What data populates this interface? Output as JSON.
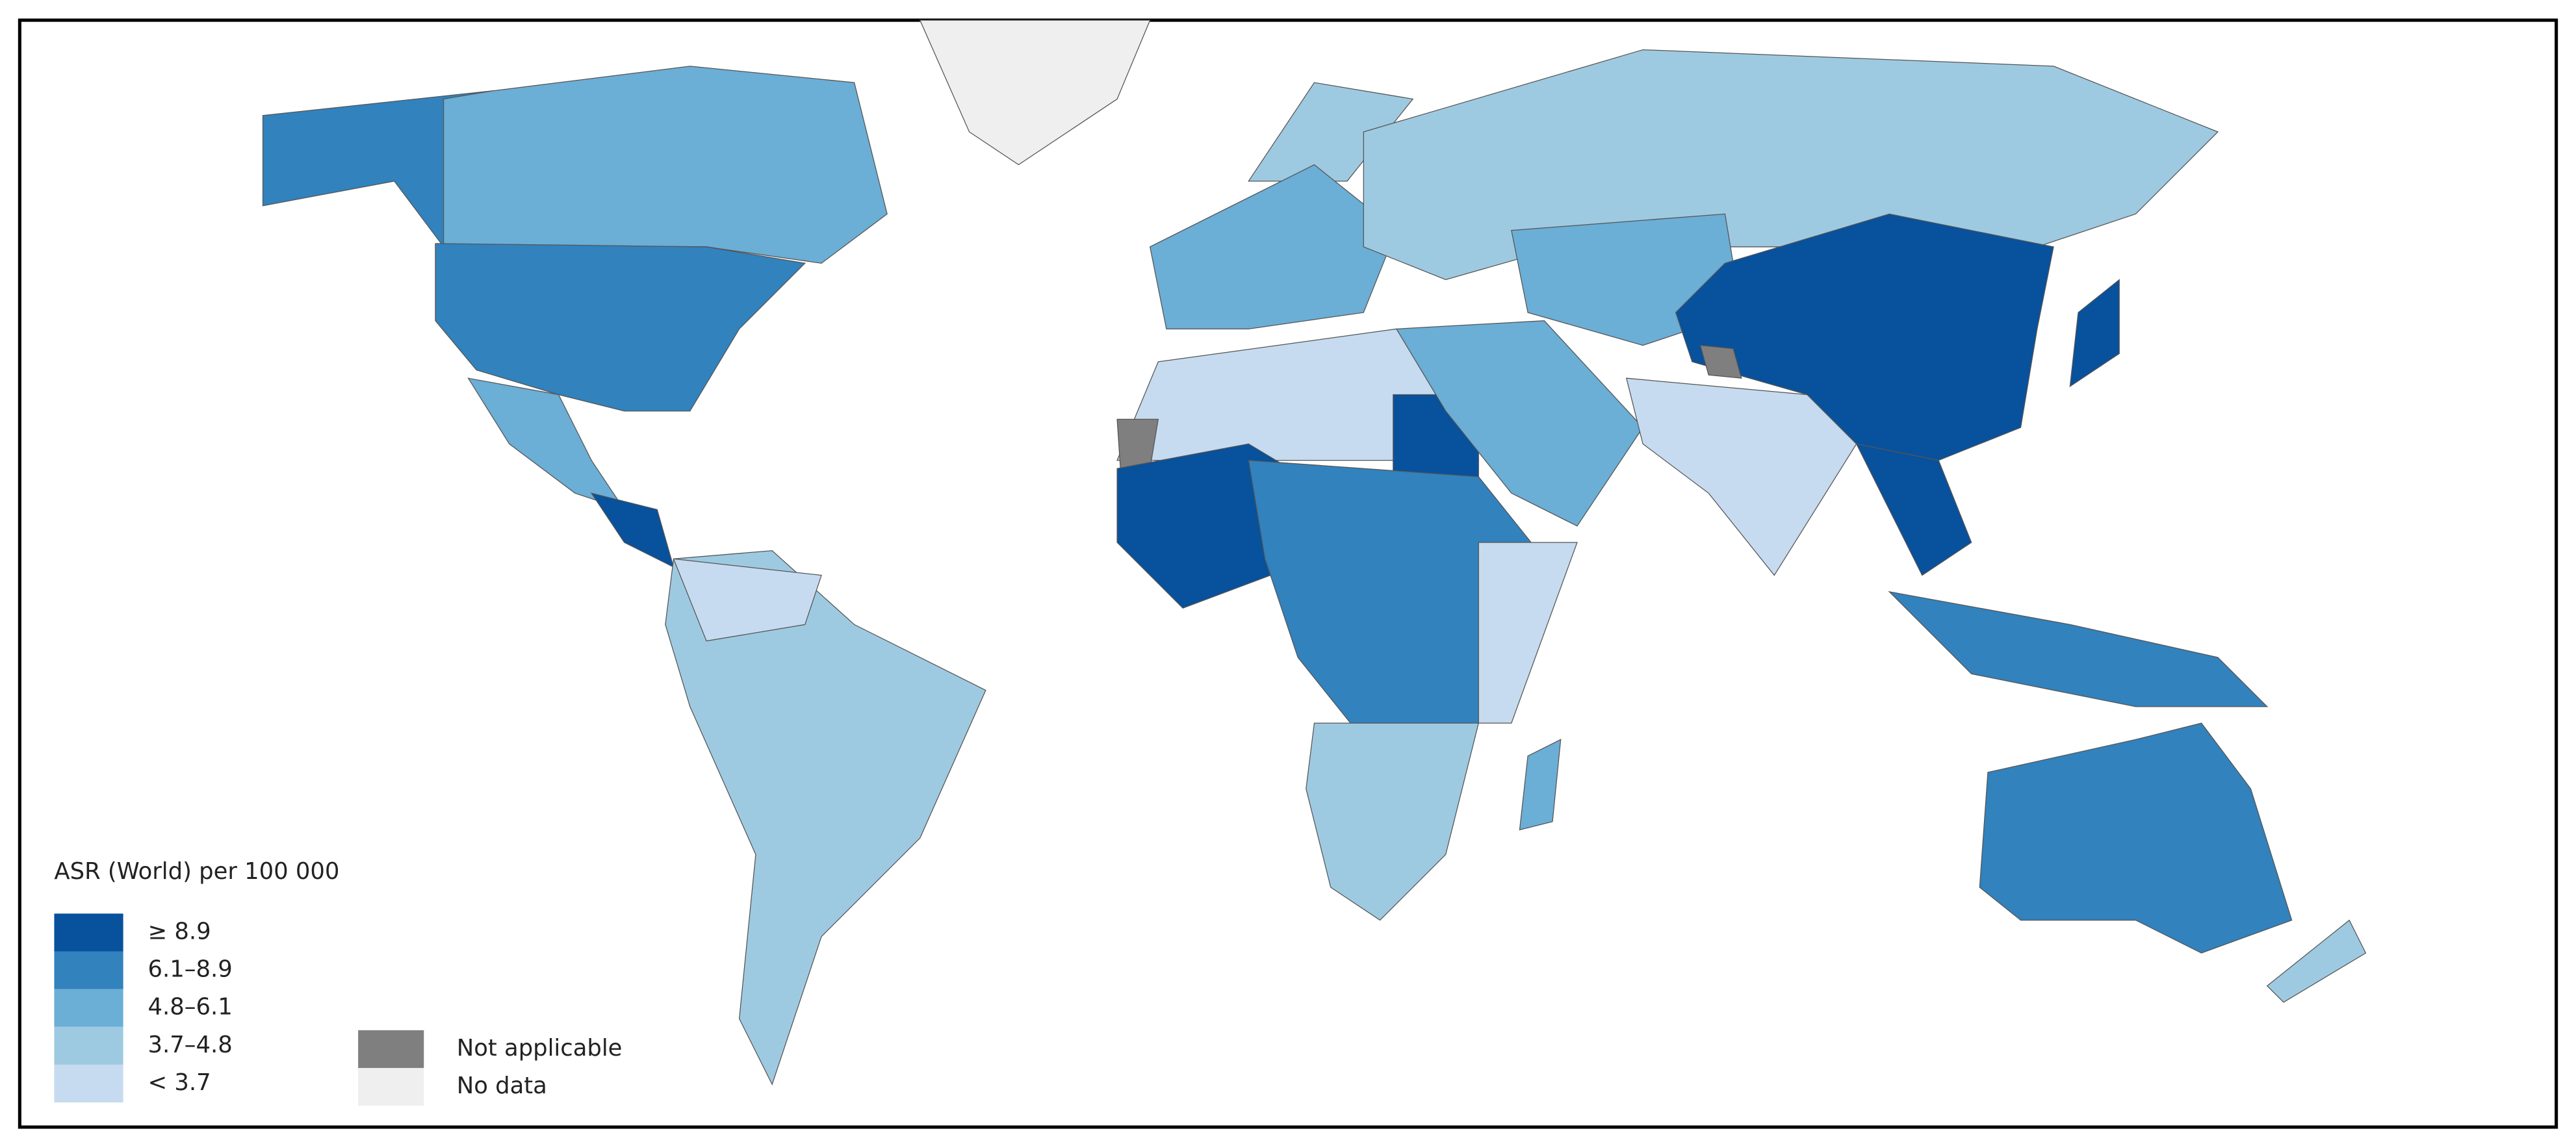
{
  "legend": {
    "title": "ASR (World) per 100 000",
    "items": [
      {
        "label": "≥ 8.9",
        "color": "#08519c"
      },
      {
        "label": "6.1–8.9",
        "color": "#3182bd"
      },
      {
        "label": "4.8–6.1",
        "color": "#6baed6"
      },
      {
        "label": "3.7–4.8",
        "color": "#9ecae1"
      },
      {
        "label": "< 3.7",
        "color": "#c6dbef"
      }
    ],
    "other": [
      {
        "label": "Not applicable",
        "color": "#7f7f7f"
      },
      {
        "label": "No data",
        "color": "#efefef"
      }
    ]
  }
}
